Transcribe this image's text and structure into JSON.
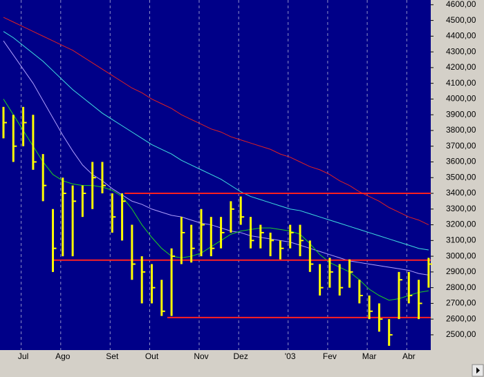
{
  "chart_data": {
    "type": "ohlc",
    "categories": [
      null,
      null,
      "Jul",
      null,
      null,
      null,
      "Ago",
      null,
      null,
      null,
      null,
      "Set",
      null,
      null,
      null,
      "Out",
      null,
      null,
      null,
      null,
      "Nov",
      null,
      null,
      null,
      "Dez",
      null,
      null,
      null,
      null,
      "'03",
      null,
      null,
      null,
      "Fev",
      null,
      null,
      null,
      "Mar",
      null,
      null,
      null,
      "Abr",
      null,
      null
    ],
    "high": [
      3950,
      3900,
      3950,
      3900,
      3650,
      3300,
      3500,
      3450,
      3450,
      3600,
      3600,
      3400,
      3400,
      3200,
      3000,
      2950,
      2850,
      3050,
      3250,
      3200,
      3300,
      3250,
      3250,
      3350,
      3380,
      3250,
      3200,
      3150,
      3100,
      3200,
      3200,
      3100,
      2950,
      2990,
      2950,
      2980,
      2850,
      2750,
      2700,
      2600,
      2900,
      2900,
      2850,
      2990
    ],
    "low": [
      3750,
      3600,
      3700,
      3550,
      3350,
      2900,
      3000,
      3000,
      3250,
      3300,
      3400,
      3150,
      3100,
      2850,
      2700,
      2700,
      2620,
      2620,
      2950,
      2960,
      3000,
      3000,
      3050,
      3150,
      3200,
      3050,
      3050,
      3000,
      2980,
      3050,
      3000,
      2900,
      2750,
      2800,
      2750,
      2800,
      2700,
      2600,
      2520,
      2430,
      2600,
      2700,
      2600,
      2800
    ],
    "close": [
      3850,
      3700,
      3850,
      3600,
      3450,
      3050,
      3400,
      3350,
      3400,
      3500,
      3450,
      3250,
      3350,
      2950,
      2900,
      2800,
      2650,
      3000,
      3150,
      3050,
      3200,
      3050,
      3150,
      3300,
      3250,
      3100,
      3150,
      3100,
      3050,
      3150,
      3100,
      2950,
      2800,
      2900,
      2800,
      2900,
      2750,
      2650,
      2600,
      2500,
      2850,
      2750,
      2700,
      2950
    ],
    "color": "#ffff00",
    "moving_averages": [
      {
        "color": "#e02020",
        "values": [
          4520,
          4490,
          4460,
          4430,
          4400,
          4370,
          4340,
          4310,
          4270,
          4230,
          4190,
          4150,
          4110,
          4070,
          4040,
          4000,
          3970,
          3940,
          3900,
          3870,
          3840,
          3810,
          3790,
          3760,
          3740,
          3720,
          3700,
          3680,
          3650,
          3630,
          3600,
          3570,
          3550,
          3520,
          3480,
          3450,
          3410,
          3380,
          3350,
          3310,
          3280,
          3250,
          3230,
          3200
        ]
      },
      {
        "color": "#40e0e0",
        "values": [
          4430,
          4390,
          4340,
          4290,
          4240,
          4180,
          4120,
          4060,
          4010,
          3960,
          3910,
          3870,
          3830,
          3790,
          3750,
          3710,
          3680,
          3650,
          3610,
          3580,
          3550,
          3520,
          3490,
          3450,
          3410,
          3380,
          3360,
          3340,
          3320,
          3300,
          3290,
          3270,
          3250,
          3230,
          3210,
          3190,
          3170,
          3150,
          3130,
          3110,
          3090,
          3070,
          3050,
          3040
        ]
      },
      {
        "color": "#b0a0ff",
        "values": [
          4370,
          4280,
          4190,
          4100,
          3990,
          3880,
          3770,
          3670,
          3580,
          3520,
          3480,
          3430,
          3390,
          3350,
          3330,
          3300,
          3280,
          3260,
          3250,
          3230,
          3210,
          3200,
          3180,
          3160,
          3150,
          3130,
          3120,
          3110,
          3100,
          3090,
          3070,
          3050,
          3030,
          3010,
          2990,
          2970,
          2960,
          2950,
          2940,
          2930,
          2920,
          2910,
          2890,
          2880
        ]
      },
      {
        "color": "#20d020",
        "values": [
          4000,
          3900,
          3800,
          3700,
          3600,
          3520,
          3480,
          3460,
          3450,
          3450,
          3440,
          3420,
          3380,
          3300,
          3200,
          3120,
          3050,
          3000,
          2990,
          3000,
          3020,
          3060,
          3100,
          3140,
          3160,
          3170,
          3180,
          3180,
          3170,
          3160,
          3140,
          3080,
          3010,
          2960,
          2930,
          2900,
          2850,
          2790,
          2750,
          2720,
          2730,
          2750,
          2770,
          2780
        ]
      }
    ],
    "levels": [
      3400,
      2975,
      2610
    ],
    "level_color": "#ff2020",
    "ylim": [
      2403,
      4630
    ],
    "yticks": [
      {
        "value": 2500,
        "label": "2500,00"
      },
      {
        "value": 2600,
        "label": "2600,00"
      },
      {
        "value": 2700,
        "label": "2700,00"
      },
      {
        "value": 2800,
        "label": "2800,00"
      },
      {
        "value": 2900,
        "label": "2900,00"
      },
      {
        "value": 3000,
        "label": "3000,00"
      },
      {
        "value": 3100,
        "label": "3100,00"
      },
      {
        "value": 3200,
        "label": "3200,00"
      },
      {
        "value": 3300,
        "label": "3300,00"
      },
      {
        "value": 3400,
        "label": "3400,00"
      },
      {
        "value": 3500,
        "label": "3500,00"
      },
      {
        "value": 3600,
        "label": "3600,00"
      },
      {
        "value": 3700,
        "label": "3700,00"
      },
      {
        "value": 3800,
        "label": "3800,00"
      },
      {
        "value": 3900,
        "label": "3900,00"
      },
      {
        "value": 4000,
        "label": "4000,00"
      },
      {
        "value": 4100,
        "label": "4100,00"
      },
      {
        "value": 4200,
        "label": "4200,00"
      },
      {
        "value": 4300,
        "label": "4300,00"
      },
      {
        "value": 4400,
        "label": "4400,00"
      },
      {
        "value": 4500,
        "label": "4500,00"
      },
      {
        "value": 4600,
        "label": "4600,00"
      }
    ],
    "grid": true
  }
}
